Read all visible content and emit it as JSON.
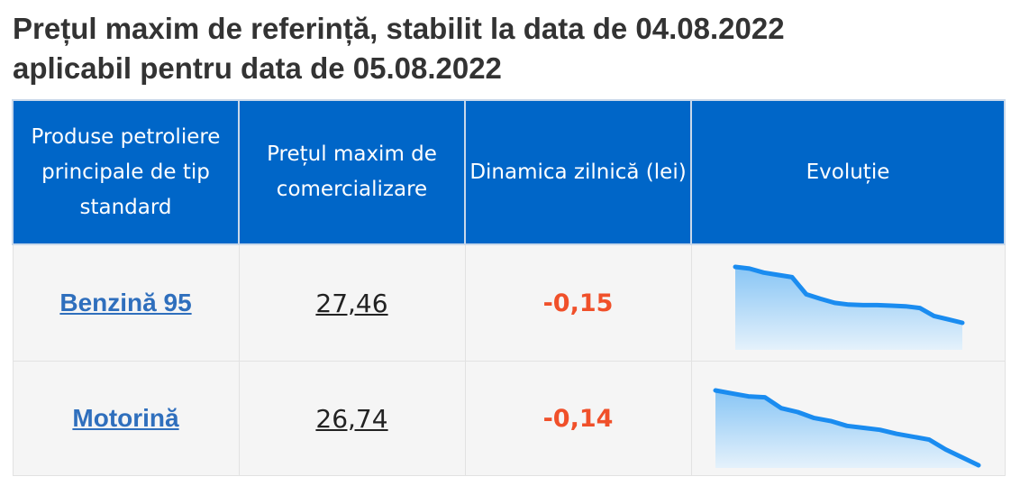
{
  "heading": {
    "line1": "Prețul maxim de referință, stabilit la data de 04.08.2022",
    "line2": "aplicabil pentru data de 05.08.2022"
  },
  "table": {
    "headers": {
      "product": "Produse petroliere principale de tip standard",
      "price": "Prețul maxim de comercializare",
      "dynamic": "Dinamica zilnică (lei)",
      "evolution": "Evoluție"
    },
    "rows": [
      {
        "product": "Benzină 95",
        "price": "27,46",
        "dynamic": "-0,15",
        "trend": [
          31.5,
          31.35,
          31.0,
          30.8,
          30.6,
          29.1,
          28.7,
          28.35,
          28.2,
          28.15,
          28.15,
          28.1,
          28.05,
          27.9,
          27.2,
          26.9,
          26.6
        ]
      },
      {
        "product": "Motorină",
        "price": "26,74",
        "dynamic": "-0,14",
        "trend": [
          30.3,
          30.15,
          30.0,
          29.95,
          29.4,
          29.2,
          28.9,
          28.75,
          28.5,
          28.4,
          28.3,
          28.1,
          27.95,
          27.8,
          27.3,
          26.9,
          26.5
        ]
      }
    ]
  },
  "colors": {
    "header_bg": "#0066c8",
    "link": "#2f6fbd",
    "negative": "#f0502a",
    "spark_line": "#1a8cf0"
  }
}
